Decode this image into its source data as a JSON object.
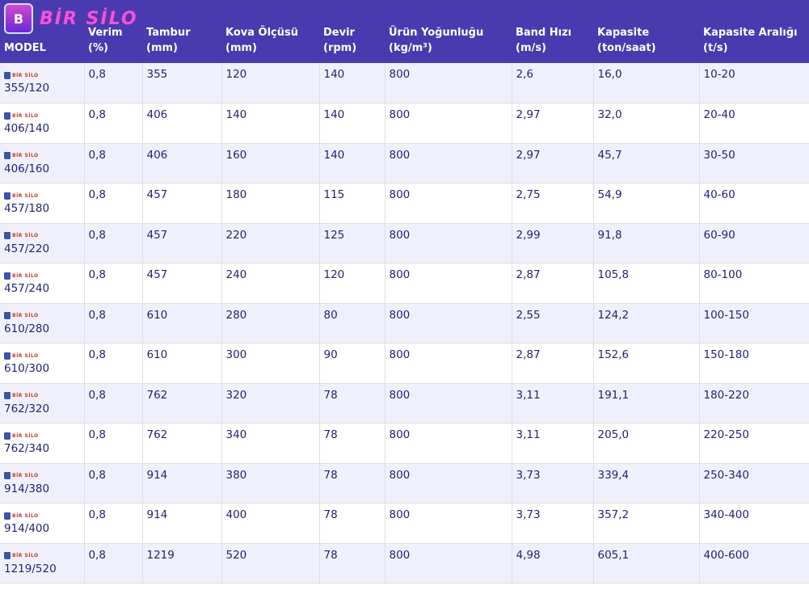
{
  "brand": {
    "name": "BİR SİLO",
    "icon_letter": "B",
    "row_logo_text": "BİR SİLO"
  },
  "headers": [
    [
      "MODEL"
    ],
    [
      "Verim",
      "(%)"
    ],
    [
      "Tambur",
      "(mm)"
    ],
    [
      "Kova Ölçüsü",
      "(mm)"
    ],
    [
      "Devir",
      "(rpm)"
    ],
    [
      "Ürün Yoğunluğu",
      "(kg/m³)"
    ],
    [
      "Band Hızı",
      "(m/s)"
    ],
    [
      "Kapasite",
      "(ton/saat)"
    ],
    [
      "Kapasite Aralığı",
      "(t/s)"
    ]
  ],
  "rows": [
    [
      "355/120",
      "0,8",
      "355",
      "120",
      "140",
      "800",
      "2,6",
      "16,0",
      "10-20"
    ],
    [
      "406/140",
      "0,8",
      "406",
      "140",
      "140",
      "800",
      "2,97",
      "32,0",
      "20-40"
    ],
    [
      "406/160",
      "0,8",
      "406",
      "160",
      "140",
      "800",
      "2,97",
      "45,7",
      "30-50"
    ],
    [
      "457/180",
      "0,8",
      "457",
      "180",
      "115",
      "800",
      "2,75",
      "54,9",
      "40-60"
    ],
    [
      "457/220",
      "0,8",
      "457",
      "220",
      "125",
      "800",
      "2,99",
      "91,8",
      "60-90"
    ],
    [
      "457/240",
      "0,8",
      "457",
      "240",
      "120",
      "800",
      "2,87",
      "105,8",
      "80-100"
    ],
    [
      "610/280",
      "0,8",
      "610",
      "280",
      "80",
      "800",
      "2,55",
      "124,2",
      "100-150"
    ],
    [
      "610/300",
      "0,8",
      "610",
      "300",
      "90",
      "800",
      "2,87",
      "152,6",
      "150-180"
    ],
    [
      "762/320",
      "0,8",
      "762",
      "320",
      "78",
      "800",
      "3,11",
      "191,1",
      "180-220"
    ],
    [
      "762/340",
      "0,8",
      "762",
      "340",
      "78",
      "800",
      "3,11",
      "205,0",
      "220-250"
    ],
    [
      "914/380",
      "0,8",
      "914",
      "380",
      "78",
      "800",
      "3,73",
      "339,4",
      "250-340"
    ],
    [
      "914/400",
      "0,8",
      "914",
      "400",
      "78",
      "800",
      "3,73",
      "357,2",
      "340-400"
    ],
    [
      "1219/520",
      "0,8",
      "1219",
      "520",
      "78",
      "800",
      "4,98",
      "605,1",
      "400-600"
    ]
  ]
}
